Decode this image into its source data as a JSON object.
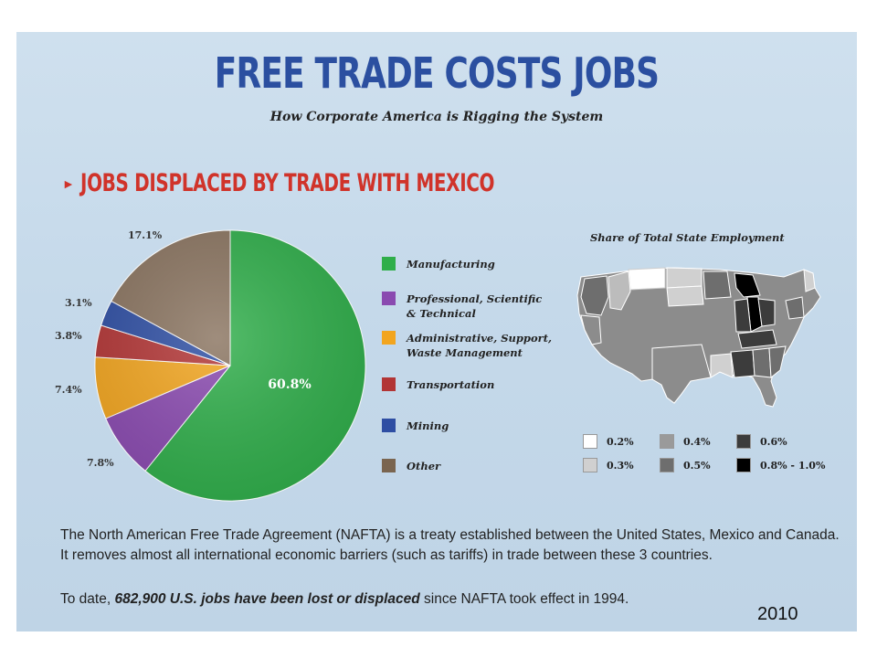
{
  "header": {
    "title": "FREE TRADE COSTS JOBS",
    "subtitle": "How Corporate America is Rigging the System"
  },
  "section": {
    "title": "JOBS DISPLACED BY TRADE WITH MEXICO"
  },
  "chart_data": {
    "type": "pie",
    "title": "JOBS DISPLACED BY TRADE WITH MEXICO",
    "slices": [
      {
        "name": "Manufacturing",
        "value": 60.8,
        "label": "60.8%",
        "color": "#2fae4a"
      },
      {
        "name": "Professional, Scientific & Technical",
        "value": 7.8,
        "label": "7.8%",
        "color": "#8a4ab0"
      },
      {
        "name": "Administrative, Support, Waste Management",
        "value": 7.4,
        "label": "7.4%",
        "color": "#f2a51f"
      },
      {
        "name": "Transportation",
        "value": 3.8,
        "label": "3.8%",
        "color": "#b23535"
      },
      {
        "name": "Mining",
        "value": 3.1,
        "label": "3.1%",
        "color": "#2e4ea3"
      },
      {
        "name": "Other",
        "value": 17.1,
        "label": "17.1%",
        "color": "#8a7460"
      }
    ],
    "legend_position": "right"
  },
  "legend": [
    {
      "line1": "Manufacturing",
      "line2": ""
    },
    {
      "line1": "Professional, Scientific",
      "line2": "& Technical"
    },
    {
      "line1": "Administrative, Support,",
      "line2": "Waste Management"
    },
    {
      "line1": "Transportation",
      "line2": ""
    },
    {
      "line1": "Mining",
      "line2": ""
    },
    {
      "line1": "Other",
      "line2": ""
    }
  ],
  "map": {
    "title": "Share of Total State Employment",
    "key": [
      {
        "label": "0.2%",
        "color": "#ffffff"
      },
      {
        "label": "0.3%",
        "color": "#d0d0d0"
      },
      {
        "label": "0.4%",
        "color": "#9a9a9a"
      },
      {
        "label": "0.5%",
        "color": "#6e6e6e"
      },
      {
        "label": "0.6%",
        "color": "#3c3c3c"
      },
      {
        "label": "0.8% - 1.0%",
        "color": "#000000"
      }
    ]
  },
  "body": {
    "paragraph": "The North American Free Trade Agreement (NAFTA) is a treaty established between the United States, Mexico and Canada.  It removes almost all international economic barriers (such as tariffs) in trade between these 3 countries.",
    "todate_prefix": "To date, ",
    "todate_bold": "682,900 U.S. jobs have been lost or displaced",
    "todate_suffix": " since NAFTA took effect in 1994."
  },
  "year_label": "2010"
}
